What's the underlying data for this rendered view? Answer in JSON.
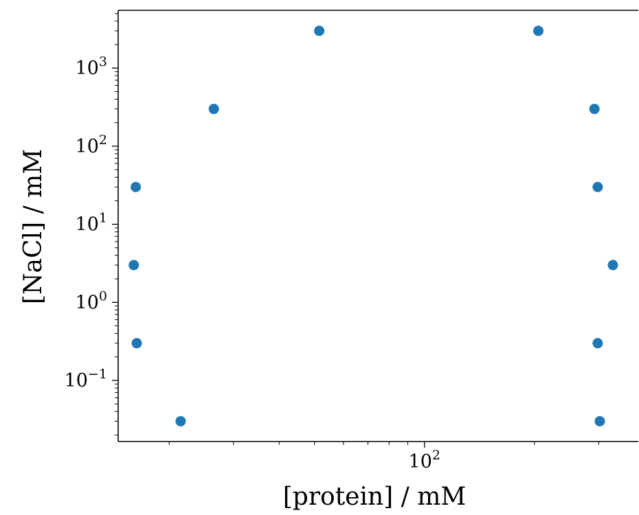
{
  "chart_data": {
    "type": "scatter",
    "title": "",
    "xlabel": "[protein] / mM",
    "ylabel": "[NaCl] / mM",
    "xscale": "log",
    "yscale": "log",
    "xlim": [
      14.5,
      385
    ],
    "ylim": [
      0.0165,
      5500
    ],
    "grid": false,
    "marker_color": "#1f77b4",
    "x_major_ticks": [
      {
        "base": "10",
        "exp": "2",
        "value": 100
      }
    ],
    "x_minor_ticks": [
      20,
      30,
      40,
      50,
      60,
      70,
      80,
      90,
      200,
      300
    ],
    "y_major_ticks": [
      {
        "base": "10",
        "exp": "−1",
        "value": 0.1
      },
      {
        "base": "10",
        "exp": "0",
        "value": 1
      },
      {
        "base": "10",
        "exp": "1",
        "value": 10
      },
      {
        "base": "10",
        "exp": "2",
        "value": 100
      },
      {
        "base": "10",
        "exp": "3",
        "value": 1000
      }
    ],
    "series": [
      {
        "points": [
          {
            "x": 21.5,
            "y": 0.03
          },
          {
            "x": 16.3,
            "y": 0.3
          },
          {
            "x": 16.0,
            "y": 3
          },
          {
            "x": 16.2,
            "y": 30
          },
          {
            "x": 26.5,
            "y": 300
          },
          {
            "x": 51.5,
            "y": 3000
          },
          {
            "x": 205,
            "y": 3000
          },
          {
            "x": 292,
            "y": 300
          },
          {
            "x": 298,
            "y": 30
          },
          {
            "x": 328,
            "y": 3
          },
          {
            "x": 298,
            "y": 0.3
          },
          {
            "x": 302,
            "y": 0.03
          }
        ]
      }
    ]
  }
}
